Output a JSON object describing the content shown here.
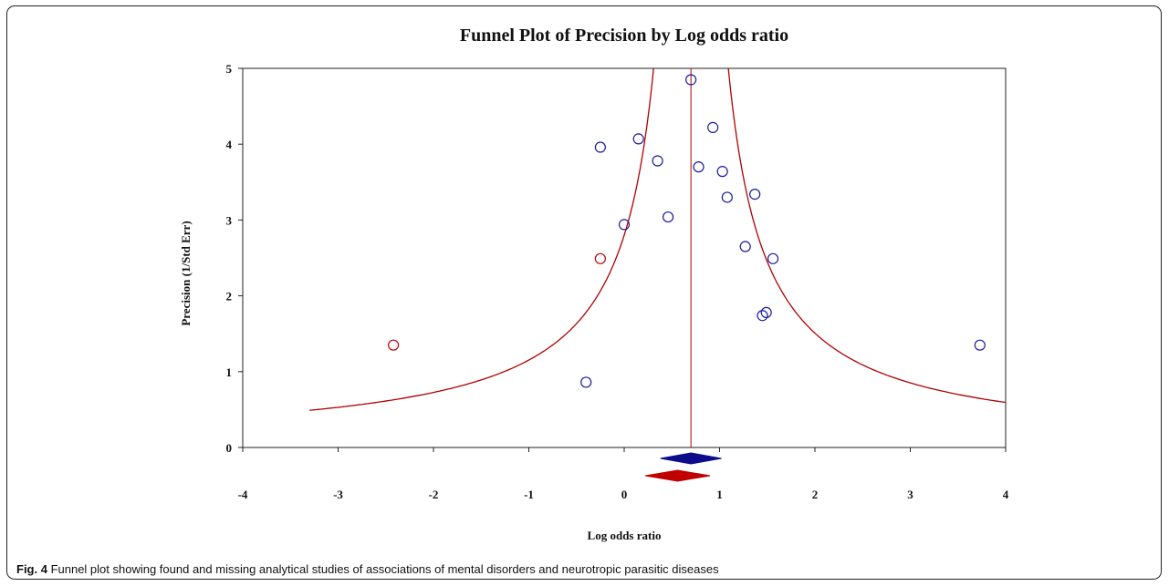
{
  "chart_data": {
    "type": "scatter",
    "title": "Funnel Plot of Precision by Log odds ratio",
    "xlabel": "Log odds ratio",
    "ylabel": "Precision (1/Std Err)",
    "xlim": [
      -4,
      4
    ],
    "ylim": [
      0,
      5
    ],
    "xticks": [
      "-4",
      "-3",
      "-2",
      "-1",
      "0",
      "1",
      "2",
      "3",
      "4"
    ],
    "yticks": [
      "0",
      "1",
      "2",
      "3",
      "4",
      "5"
    ],
    "center": 0.7,
    "funnel_color": "#b00000",
    "series": [
      {
        "color": "#1a1a9e",
        "points": [
          {
            "x": 0.7,
            "y": 4.85
          },
          {
            "x": 0.93,
            "y": 4.22
          },
          {
            "x": 0.15,
            "y": 4.07
          },
          {
            "x": -0.25,
            "y": 3.96
          },
          {
            "x": 0.35,
            "y": 3.78
          },
          {
            "x": 0.78,
            "y": 3.7
          },
          {
            "x": 1.03,
            "y": 3.64
          },
          {
            "x": 1.37,
            "y": 3.34
          },
          {
            "x": 1.08,
            "y": 3.3
          },
          {
            "x": 0.46,
            "y": 3.04
          },
          {
            "x": 0.0,
            "y": 2.94
          },
          {
            "x": 1.27,
            "y": 2.65
          },
          {
            "x": 1.56,
            "y": 2.49
          },
          {
            "x": 1.49,
            "y": 1.78
          },
          {
            "x": 1.45,
            "y": 1.74
          },
          {
            "x": -0.4,
            "y": 0.86
          },
          {
            "x": 3.73,
            "y": 1.35
          }
        ]
      },
      {
        "color": "#c00000",
        "points": [
          {
            "x": -0.25,
            "y": 2.49
          },
          {
            "x": -2.42,
            "y": 1.35
          }
        ]
      }
    ],
    "summary_diamonds": [
      {
        "color": "#0d0d8c",
        "center": 0.7,
        "lower": 0.38,
        "upper": 1.02
      },
      {
        "color": "#c00000",
        "center": 0.56,
        "lower": 0.22,
        "upper": 0.9
      }
    ]
  },
  "caption": {
    "label": "Fig. 4",
    "text": " Funnel plot showing found and missing analytical studies of associations of mental disorders and neurotropic parasitic diseases"
  }
}
